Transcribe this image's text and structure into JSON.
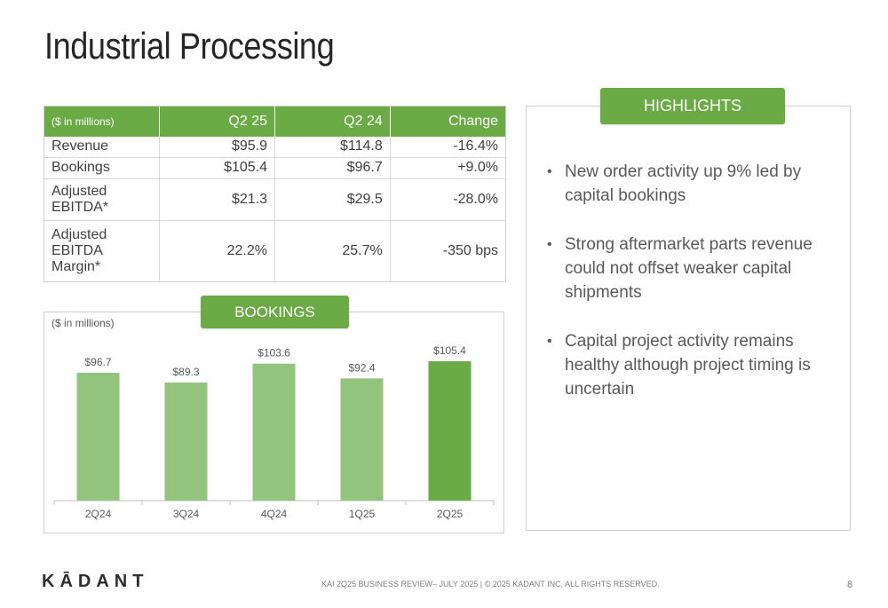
{
  "page": {
    "title": "Industrial Processing",
    "footer_text": "KAI 2Q25 BUSINESS REVIEW– JULY 2025 | © 2025 KADANT INC. ALL RIGHTS RESERVED.",
    "page_number": "8",
    "logo_text": "KĀDANT"
  },
  "metrics_table": {
    "headers": [
      "($ in millions)",
      "Q2 25",
      "Q2 24",
      "Change"
    ],
    "rows": [
      [
        "Revenue",
        "$95.9",
        "$114.8",
        "-16.4%"
      ],
      [
        "Bookings",
        "$105.4",
        "$96.7",
        "+9.0%"
      ],
      [
        "Adjusted EBITDA*",
        "$21.3",
        "$29.5",
        "-28.0%"
      ],
      [
        "Adjusted EBITDA Margin*",
        "22.2%",
        "25.7%",
        "-350 bps"
      ]
    ]
  },
  "bookings": {
    "tab_label": "BOOKINGS",
    "unit_label": "($ in millions)"
  },
  "highlights": {
    "tab_label": "HIGHLIGHTS",
    "items": [
      "New order activity up 9% led by capital bookings",
      "Strong aftermarket parts revenue could not offset weaker capital shipments",
      "Capital project activity remains healthy although project timing is uncertain"
    ]
  },
  "colors": {
    "accent": "#6aab45",
    "bar_light": "#93c47d",
    "bar_highlight": "#6aab45"
  },
  "chart_data": {
    "type": "bar",
    "categories": [
      "2Q24",
      "3Q24",
      "4Q24",
      "1Q25",
      "2Q25"
    ],
    "values": [
      96.7,
      89.3,
      103.6,
      92.4,
      105.4
    ],
    "data_labels": [
      "$96.7",
      "$89.3",
      "$103.6",
      "$92.4",
      "$105.4"
    ],
    "highlight_index": 4,
    "ylim": [
      0,
      105.4
    ],
    "grid": false,
    "legend": "none"
  }
}
